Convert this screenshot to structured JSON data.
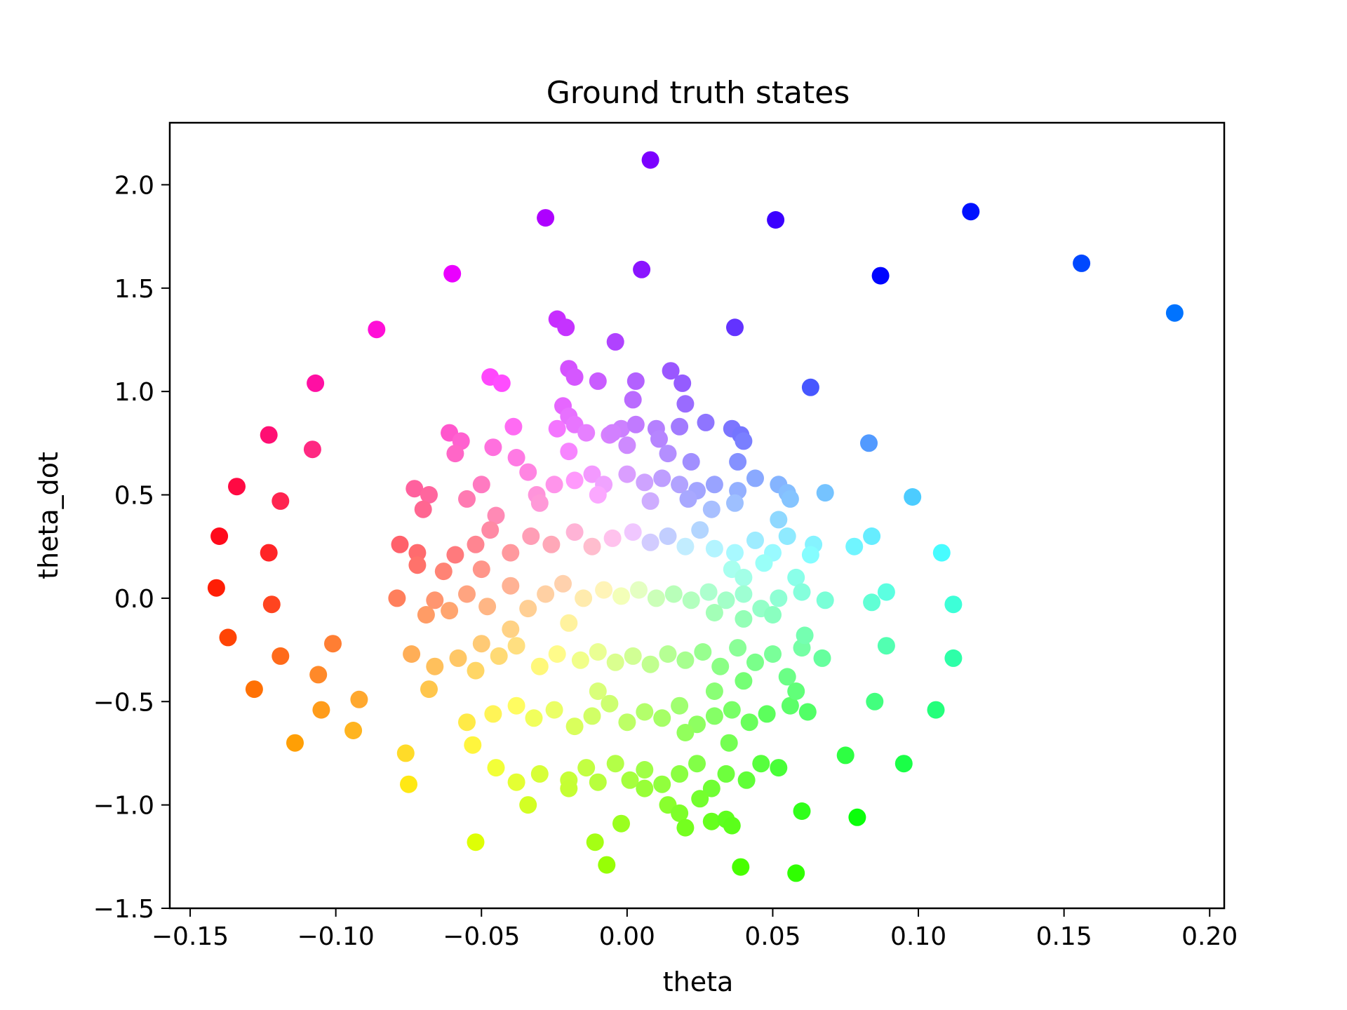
{
  "chart_data": {
    "type": "scatter",
    "title": "Ground truth states",
    "xlabel": "theta",
    "ylabel": "theta_dot",
    "xlim": [
      -0.157,
      0.205
    ],
    "ylim": [
      -1.5,
      2.3
    ],
    "xticks": [
      -0.15,
      -0.1,
      -0.05,
      0.0,
      0.05,
      0.1,
      0.15,
      0.2
    ],
    "yticks": [
      -1.5,
      -1.0,
      -0.5,
      0.0,
      0.5,
      1.0,
      1.5,
      2.0
    ],
    "xtick_labels": [
      "−0.15",
      "−0.10",
      "−0.05",
      "0.00",
      "0.05",
      "0.10",
      "0.15",
      "0.20"
    ],
    "ytick_labels": [
      "−1.5",
      "−1.0",
      "−0.5",
      "0.0",
      "0.5",
      "1.0",
      "1.5",
      "2.0"
    ],
    "grid": false,
    "legend": "none",
    "coloring": "hue by angle in phase plane, saturation by distance from center",
    "points": [
      [
        0.008,
        2.12
      ],
      [
        -0.028,
        1.84
      ],
      [
        0.051,
        1.83
      ],
      [
        0.118,
        1.87
      ],
      [
        0.156,
        1.62
      ],
      [
        0.188,
        1.38
      ],
      [
        0.005,
        1.59
      ],
      [
        0.087,
        1.56
      ],
      [
        -0.06,
        1.57
      ],
      [
        -0.024,
        1.35
      ],
      [
        -0.021,
        1.31
      ],
      [
        0.037,
        1.31
      ],
      [
        -0.004,
        1.24
      ],
      [
        -0.086,
        1.3
      ],
      [
        -0.107,
        1.04
      ],
      [
        0.063,
        1.02
      ],
      [
        -0.123,
        0.79
      ],
      [
        -0.108,
        0.72
      ],
      [
        0.083,
        0.75
      ],
      [
        -0.134,
        0.54
      ],
      [
        -0.119,
        0.47
      ],
      [
        0.068,
        0.51
      ],
      [
        0.098,
        0.49
      ],
      [
        -0.14,
        0.3
      ],
      [
        -0.123,
        0.22
      ],
      [
        0.084,
        0.3
      ],
      [
        0.078,
        0.25
      ],
      [
        0.108,
        0.22
      ],
      [
        -0.141,
        0.05
      ],
      [
        -0.122,
        -0.03
      ],
      [
        0.084,
        -0.02
      ],
      [
        0.089,
        0.03
      ],
      [
        0.112,
        -0.03
      ],
      [
        -0.137,
        -0.19
      ],
      [
        -0.119,
        -0.28
      ],
      [
        -0.101,
        -0.22
      ],
      [
        0.089,
        -0.23
      ],
      [
        0.112,
        -0.29
      ],
      [
        -0.128,
        -0.44
      ],
      [
        -0.106,
        -0.37
      ],
      [
        -0.092,
        -0.49
      ],
      [
        0.085,
        -0.5
      ],
      [
        0.106,
        -0.54
      ],
      [
        -0.105,
        -0.54
      ],
      [
        -0.114,
        -0.7
      ],
      [
        -0.094,
        -0.64
      ],
      [
        0.075,
        -0.76
      ],
      [
        0.095,
        -0.8
      ],
      [
        -0.076,
        -0.75
      ],
      [
        -0.075,
        -0.9
      ],
      [
        0.079,
        -1.06
      ],
      [
        0.06,
        -1.03
      ],
      [
        -0.052,
        -1.18
      ],
      [
        -0.011,
        -1.18
      ],
      [
        -0.007,
        -1.29
      ],
      [
        0.039,
        -1.3
      ],
      [
        0.058,
        -1.33
      ],
      [
        -0.047,
        1.07
      ],
      [
        -0.043,
        1.04
      ],
      [
        -0.02,
        1.11
      ],
      [
        -0.018,
        1.07
      ],
      [
        -0.01,
        1.05
      ],
      [
        0.003,
        1.05
      ],
      [
        0.015,
        1.1
      ],
      [
        0.019,
        1.04
      ],
      [
        -0.022,
        0.93
      ],
      [
        -0.02,
        0.88
      ],
      [
        0.002,
        0.96
      ],
      [
        0.02,
        0.94
      ],
      [
        -0.061,
        0.8
      ],
      [
        -0.057,
        0.76
      ],
      [
        -0.059,
        0.7
      ],
      [
        -0.046,
        0.73
      ],
      [
        -0.039,
        0.83
      ],
      [
        -0.024,
        0.82
      ],
      [
        -0.018,
        0.84
      ],
      [
        -0.014,
        0.8
      ],
      [
        -0.006,
        0.79
      ],
      [
        -0.002,
        0.82
      ],
      [
        0.003,
        0.84
      ],
      [
        0.01,
        0.82
      ],
      [
        0.018,
        0.83
      ],
      [
        0.027,
        0.85
      ],
      [
        0.036,
        0.82
      ],
      [
        0.039,
        0.79
      ],
      [
        0.04,
        0.76
      ],
      [
        0.011,
        0.77
      ],
      [
        0.014,
        0.7
      ],
      [
        0.022,
        0.66
      ],
      [
        0.038,
        0.66
      ],
      [
        -0.02,
        0.71
      ],
      [
        0.0,
        0.74
      ],
      [
        -0.005,
        0.8
      ],
      [
        -0.073,
        0.53
      ],
      [
        -0.068,
        0.5
      ],
      [
        -0.07,
        0.43
      ],
      [
        -0.055,
        0.48
      ],
      [
        -0.05,
        0.55
      ],
      [
        -0.045,
        0.4
      ],
      [
        -0.038,
        0.68
      ],
      [
        -0.034,
        0.61
      ],
      [
        -0.031,
        0.5
      ],
      [
        -0.025,
        0.55
      ],
      [
        -0.018,
        0.57
      ],
      [
        -0.012,
        0.6
      ],
      [
        -0.008,
        0.55
      ],
      [
        0.0,
        0.6
      ],
      [
        0.006,
        0.56
      ],
      [
        0.012,
        0.58
      ],
      [
        0.018,
        0.55
      ],
      [
        0.024,
        0.52
      ],
      [
        0.03,
        0.55
      ],
      [
        0.038,
        0.52
      ],
      [
        0.044,
        0.58
      ],
      [
        0.052,
        0.55
      ],
      [
        0.055,
        0.51
      ],
      [
        0.056,
        0.48
      ],
      [
        0.037,
        0.46
      ],
      [
        0.029,
        0.43
      ],
      [
        0.021,
        0.48
      ],
      [
        0.008,
        0.47
      ],
      [
        -0.01,
        0.5
      ],
      [
        -0.03,
        0.46
      ],
      [
        -0.078,
        0.26
      ],
      [
        -0.072,
        0.22
      ],
      [
        -0.072,
        0.16
      ],
      [
        -0.059,
        0.21
      ],
      [
        -0.052,
        0.26
      ],
      [
        -0.047,
        0.33
      ],
      [
        -0.04,
        0.22
      ],
      [
        -0.033,
        0.3
      ],
      [
        -0.026,
        0.26
      ],
      [
        -0.018,
        0.32
      ],
      [
        -0.012,
        0.25
      ],
      [
        -0.005,
        0.29
      ],
      [
        0.002,
        0.32
      ],
      [
        0.008,
        0.27
      ],
      [
        0.014,
        0.3
      ],
      [
        0.02,
        0.25
      ],
      [
        0.025,
        0.33
      ],
      [
        0.03,
        0.24
      ],
      [
        0.037,
        0.22
      ],
      [
        0.044,
        0.28
      ],
      [
        0.05,
        0.22
      ],
      [
        0.052,
        0.38
      ],
      [
        0.055,
        0.3
      ],
      [
        0.064,
        0.26
      ],
      [
        0.063,
        0.21
      ],
      [
        0.047,
        0.17
      ],
      [
        0.036,
        0.14
      ],
      [
        0.04,
        0.1
      ],
      [
        -0.063,
        0.13
      ],
      [
        -0.05,
        0.14
      ],
      [
        -0.079,
        0.0
      ],
      [
        -0.066,
        -0.01
      ],
      [
        -0.069,
        -0.08
      ],
      [
        -0.061,
        -0.06
      ],
      [
        -0.055,
        0.02
      ],
      [
        -0.048,
        -0.04
      ],
      [
        -0.04,
        0.06
      ],
      [
        -0.034,
        -0.05
      ],
      [
        -0.028,
        0.02
      ],
      [
        -0.022,
        0.07
      ],
      [
        -0.015,
        0.0
      ],
      [
        -0.008,
        0.04
      ],
      [
        -0.002,
        0.01
      ],
      [
        0.004,
        0.04
      ],
      [
        0.01,
        0.0
      ],
      [
        0.016,
        0.02
      ],
      [
        0.022,
        -0.01
      ],
      [
        0.028,
        0.03
      ],
      [
        0.034,
        -0.01
      ],
      [
        0.04,
        0.02
      ],
      [
        0.046,
        -0.05
      ],
      [
        0.052,
        0.0
      ],
      [
        0.058,
        0.1
      ],
      [
        0.06,
        0.03
      ],
      [
        0.068,
        -0.01
      ],
      [
        0.05,
        -0.08
      ],
      [
        0.04,
        -0.1
      ],
      [
        0.03,
        -0.07
      ],
      [
        -0.074,
        -0.27
      ],
      [
        -0.066,
        -0.33
      ],
      [
        -0.068,
        -0.44
      ],
      [
        -0.058,
        -0.29
      ],
      [
        -0.05,
        -0.22
      ],
      [
        -0.052,
        -0.35
      ],
      [
        -0.044,
        -0.28
      ],
      [
        -0.038,
        -0.23
      ],
      [
        -0.03,
        -0.33
      ],
      [
        -0.024,
        -0.27
      ],
      [
        -0.016,
        -0.3
      ],
      [
        -0.01,
        -0.26
      ],
      [
        -0.004,
        -0.31
      ],
      [
        0.002,
        -0.28
      ],
      [
        0.008,
        -0.32
      ],
      [
        0.014,
        -0.27
      ],
      [
        0.02,
        -0.3
      ],
      [
        0.026,
        -0.26
      ],
      [
        0.032,
        -0.33
      ],
      [
        0.038,
        -0.24
      ],
      [
        0.044,
        -0.31
      ],
      [
        0.05,
        -0.27
      ],
      [
        0.055,
        -0.38
      ],
      [
        0.06,
        -0.24
      ],
      [
        0.061,
        -0.18
      ],
      [
        0.067,
        -0.29
      ],
      [
        0.04,
        -0.4
      ],
      [
        0.03,
        -0.45
      ],
      [
        -0.04,
        -0.15
      ],
      [
        -0.02,
        -0.12
      ],
      [
        -0.055,
        -0.6
      ],
      [
        -0.053,
        -0.71
      ],
      [
        -0.046,
        -0.56
      ],
      [
        -0.038,
        -0.52
      ],
      [
        -0.032,
        -0.58
      ],
      [
        -0.025,
        -0.54
      ],
      [
        -0.018,
        -0.62
      ],
      [
        -0.012,
        -0.57
      ],
      [
        -0.006,
        -0.51
      ],
      [
        0.0,
        -0.6
      ],
      [
        0.006,
        -0.55
      ],
      [
        0.012,
        -0.58
      ],
      [
        0.018,
        -0.52
      ],
      [
        0.024,
        -0.61
      ],
      [
        0.03,
        -0.57
      ],
      [
        0.036,
        -0.54
      ],
      [
        0.042,
        -0.6
      ],
      [
        0.048,
        -0.56
      ],
      [
        0.056,
        -0.52
      ],
      [
        0.058,
        -0.45
      ],
      [
        0.062,
        -0.55
      ],
      [
        0.035,
        -0.7
      ],
      [
        0.02,
        -0.65
      ],
      [
        -0.01,
        -0.45
      ],
      [
        -0.045,
        -0.82
      ],
      [
        -0.038,
        -0.89
      ],
      [
        -0.034,
        -1.0
      ],
      [
        -0.03,
        -0.85
      ],
      [
        -0.02,
        -0.88
      ],
      [
        -0.02,
        -0.92
      ],
      [
        -0.014,
        -0.82
      ],
      [
        -0.01,
        -0.89
      ],
      [
        -0.004,
        -0.8
      ],
      [
        0.001,
        -0.88
      ],
      [
        0.006,
        -0.83
      ],
      [
        0.012,
        -0.9
      ],
      [
        0.018,
        -0.85
      ],
      [
        0.024,
        -0.8
      ],
      [
        0.029,
        -0.92
      ],
      [
        0.034,
        -0.85
      ],
      [
        0.041,
        -0.88
      ],
      [
        0.046,
        -0.8
      ],
      [
        0.052,
        -0.82
      ],
      [
        0.014,
        -1.0
      ],
      [
        0.018,
        -1.04
      ],
      [
        0.029,
        -1.08
      ],
      [
        0.034,
        -1.07
      ],
      [
        0.036,
        -1.1
      ],
      [
        -0.002,
        -1.09
      ],
      [
        0.02,
        -1.11
      ],
      [
        0.025,
        -0.97
      ],
      [
        0.006,
        -0.92
      ]
    ]
  }
}
